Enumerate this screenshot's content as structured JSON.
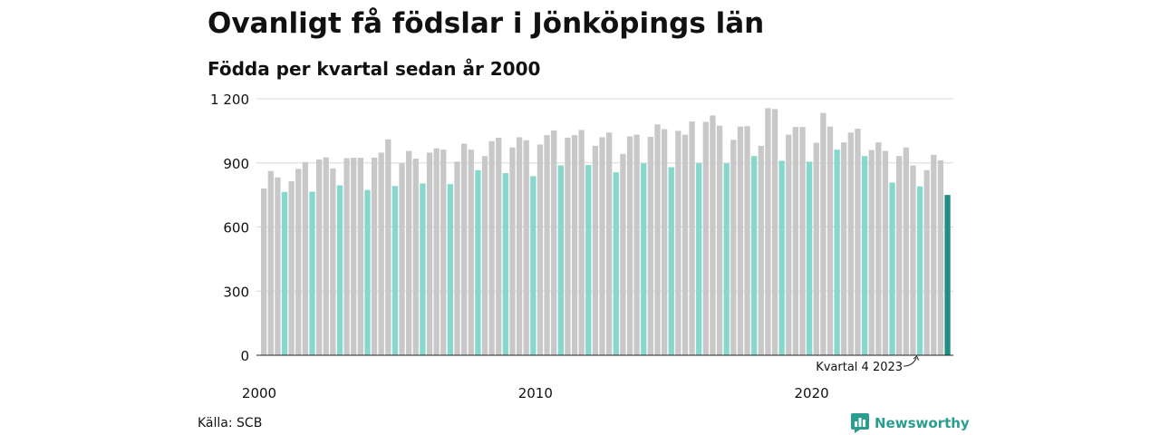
{
  "title": "Ovanligt få födslar i Jönköpings län",
  "subtitle": "Födda per kvartal sedan år 2000",
  "source": "Källa: SCB",
  "brand": "Newsworthy",
  "colors": {
    "other_quarters": "#c8c8c8",
    "q4": "#86d8cc",
    "latest": "#1f8f80",
    "grid": "#d9d9d9",
    "brand": "#2a9d8f"
  },
  "chart_data": {
    "type": "bar",
    "title": "Ovanligt få födslar i Jönköpings län",
    "subtitle": "Födda per kvartal sedan år 2000",
    "ylim": [
      0,
      1200
    ],
    "yticks": [
      0,
      300,
      600,
      900,
      1200
    ],
    "ytick_labels": [
      "0",
      "300",
      "600",
      "900",
      "1 200"
    ],
    "xtick_labels": [
      {
        "index": 0,
        "label": "2000"
      },
      {
        "index": 40,
        "label": "2010"
      },
      {
        "index": 80,
        "label": "2020"
      }
    ],
    "annotation": {
      "text": "Kvartal 4 2023",
      "index": 95
    },
    "grid": true,
    "values": [
      780,
      862,
      832,
      764,
      814,
      872,
      904,
      765,
      916,
      926,
      874,
      795,
      922,
      924,
      924,
      773,
      925,
      948,
      1010,
      792,
      898,
      956,
      920,
      804,
      948,
      968,
      962,
      801,
      906,
      990,
      962,
      866,
      932,
      1002,
      1018,
      852,
      972,
      1020,
      1006,
      838,
      986,
      1030,
      1052,
      888,
      1018,
      1030,
      1054,
      890,
      980,
      1020,
      1042,
      856,
      942,
      1024,
      1032,
      898,
      1022,
      1080,
      1058,
      880,
      1050,
      1032,
      1094,
      898,
      1092,
      1122,
      1074,
      898,
      1008,
      1070,
      1072,
      932,
      980,
      1156,
      1152,
      910,
      1032,
      1068,
      1068,
      906,
      994,
      1134,
      1070,
      962,
      996,
      1042,
      1060,
      932,
      960,
      996,
      956,
      808,
      932,
      972,
      888,
      790,
      866,
      938,
      912,
      750
    ]
  }
}
